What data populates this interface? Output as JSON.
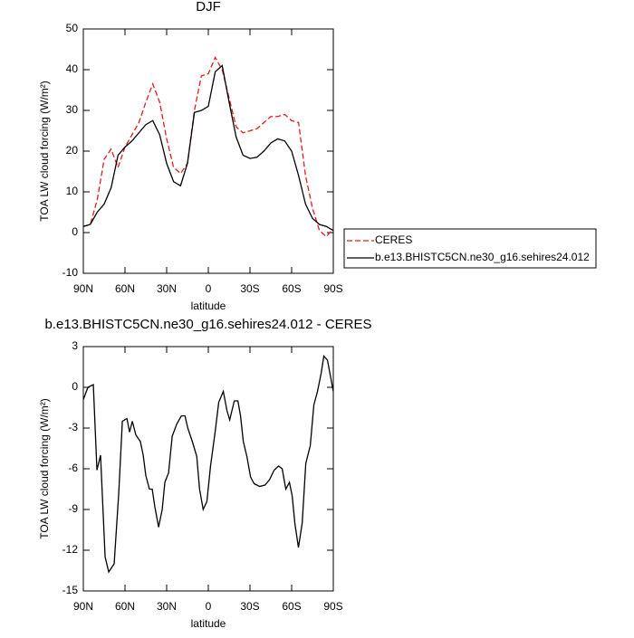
{
  "chart_data": [
    {
      "type": "line",
      "title": "DJF",
      "x_label": "latitude",
      "y_label": "TOA LW cloud forcing (W/m²)",
      "x": [
        90,
        85,
        80,
        75,
        70,
        65,
        60,
        55,
        50,
        45,
        40,
        35,
        30,
        25,
        20,
        15,
        10,
        5,
        0,
        -5,
        -10,
        -15,
        -20,
        -25,
        -30,
        -35,
        -40,
        -45,
        -50,
        -55,
        -60,
        -65,
        -70,
        -75,
        -80,
        -85,
        -90
      ],
      "series": [
        {
          "name": "CERES",
          "color": "#e41a1c",
          "line_style": "dashed",
          "values": [
            1.5,
            2,
            8,
            18,
            20.5,
            16,
            21,
            24,
            27,
            32,
            36.5,
            32,
            23,
            16,
            14.5,
            17,
            30,
            38.5,
            39,
            43,
            40,
            33,
            26,
            24.5,
            25,
            25.5,
            27,
            28.5,
            28.5,
            29,
            27.5,
            27,
            14,
            6,
            0.5,
            -1,
            1
          ]
        },
        {
          "name": "b.e13.BHISTC5CN.ne30_g16.sehires24.012",
          "color": "#000000",
          "line_style": "solid",
          "values": [
            1.5,
            2,
            5,
            7,
            11,
            19,
            21,
            22.5,
            24.5,
            26.5,
            27.5,
            24,
            17,
            12.5,
            11.5,
            17,
            29.5,
            30,
            31,
            39.5,
            41,
            32,
            23.5,
            19,
            18.2,
            18.5,
            20,
            22,
            23,
            22.5,
            20,
            14,
            7,
            3.5,
            2,
            1.5,
            0.5
          ]
        }
      ],
      "xlim": [
        90,
        -90
      ],
      "xticks": [
        {
          "value": 90,
          "label": "90N"
        },
        {
          "value": 60,
          "label": "60N"
        },
        {
          "value": 30,
          "label": "30N"
        },
        0,
        {
          "value": -30,
          "label": "30S"
        },
        {
          "value": -60,
          "label": "60S"
        },
        {
          "value": -90,
          "label": "90S"
        }
      ],
      "ylim": [
        -10,
        50
      ],
      "yticks": [
        -10,
        0,
        10,
        20,
        30,
        40,
        50
      ],
      "legend": "right"
    },
    {
      "type": "line",
      "title": "b.e13.BHISTC5CN.ne30_g16.sehires24.012 - CERES",
      "x_label": "latitude",
      "y_label": "TOA LW cloud forcing (W/m²)",
      "x": [
        90,
        86.7,
        82.8,
        80.2,
        77.6,
        74.3,
        71.7,
        67.8,
        64.5,
        61.9,
        58.6,
        56.7,
        54.7,
        52.2,
        48.9,
        46.9,
        45,
        42.4,
        40.4,
        38.5,
        35.8,
        33.2,
        31.3,
        28.6,
        26,
        22.7,
        19.4,
        16.8,
        14.8,
        11.5,
        8.3,
        6.3,
        3.7,
        1,
        -1.6,
        -4.9,
        -7.5,
        -10.8,
        -13.4,
        -15.4,
        -18.7,
        -21.3,
        -23.2,
        -25.2,
        -27.8,
        -30.4,
        -33,
        -36.9,
        -40.8,
        -44.1,
        -47.4,
        -50.6,
        -53.2,
        -55.8,
        -58.4,
        -60.4,
        -62.3,
        -64.9,
        -67.6,
        -70.2,
        -73.4,
        -76,
        -78.6,
        -81.2,
        -83.2,
        -85.8,
        -90
      ],
      "values": [
        -0.9,
        0,
        0.2,
        -6.1,
        -5,
        -12.5,
        -13.6,
        -13,
        -7.8,
        -2.5,
        -2.3,
        -3.3,
        -2.5,
        -3.5,
        -4,
        -5,
        -6.5,
        -7.5,
        -7.5,
        -8.8,
        -10.3,
        -9,
        -7,
        -6.3,
        -3.6,
        -2.7,
        -2.1,
        -2.1,
        -3,
        -4,
        -5.1,
        -7.5,
        -9,
        -8.4,
        -5.8,
        -3.3,
        -1.1,
        -0.3,
        -1.7,
        -2.4,
        -1,
        -1,
        -2.1,
        -4,
        -5.1,
        -6.6,
        -7.1,
        -7.3,
        -7.2,
        -6.8,
        -6.1,
        -5.8,
        -6,
        -7.5,
        -7,
        -8,
        -10,
        -11.8,
        -10,
        -5.6,
        -4.3,
        -1.3,
        -0.3,
        1,
        2.3,
        2,
        -0.3
      ],
      "color": "#000000",
      "xlim": [
        90,
        -90
      ],
      "xticks": [
        {
          "value": 90,
          "label": "90N"
        },
        {
          "value": 60,
          "label": "60N"
        },
        {
          "value": 30,
          "label": "30N"
        },
        0,
        {
          "value": -30,
          "label": "30S"
        },
        {
          "value": -60,
          "label": "60S"
        },
        {
          "value": -90,
          "label": "90S"
        }
      ],
      "ylim": [
        -15,
        3
      ],
      "yticks": [
        -15,
        -12,
        -9,
        -6,
        -3,
        0,
        3
      ]
    }
  ]
}
